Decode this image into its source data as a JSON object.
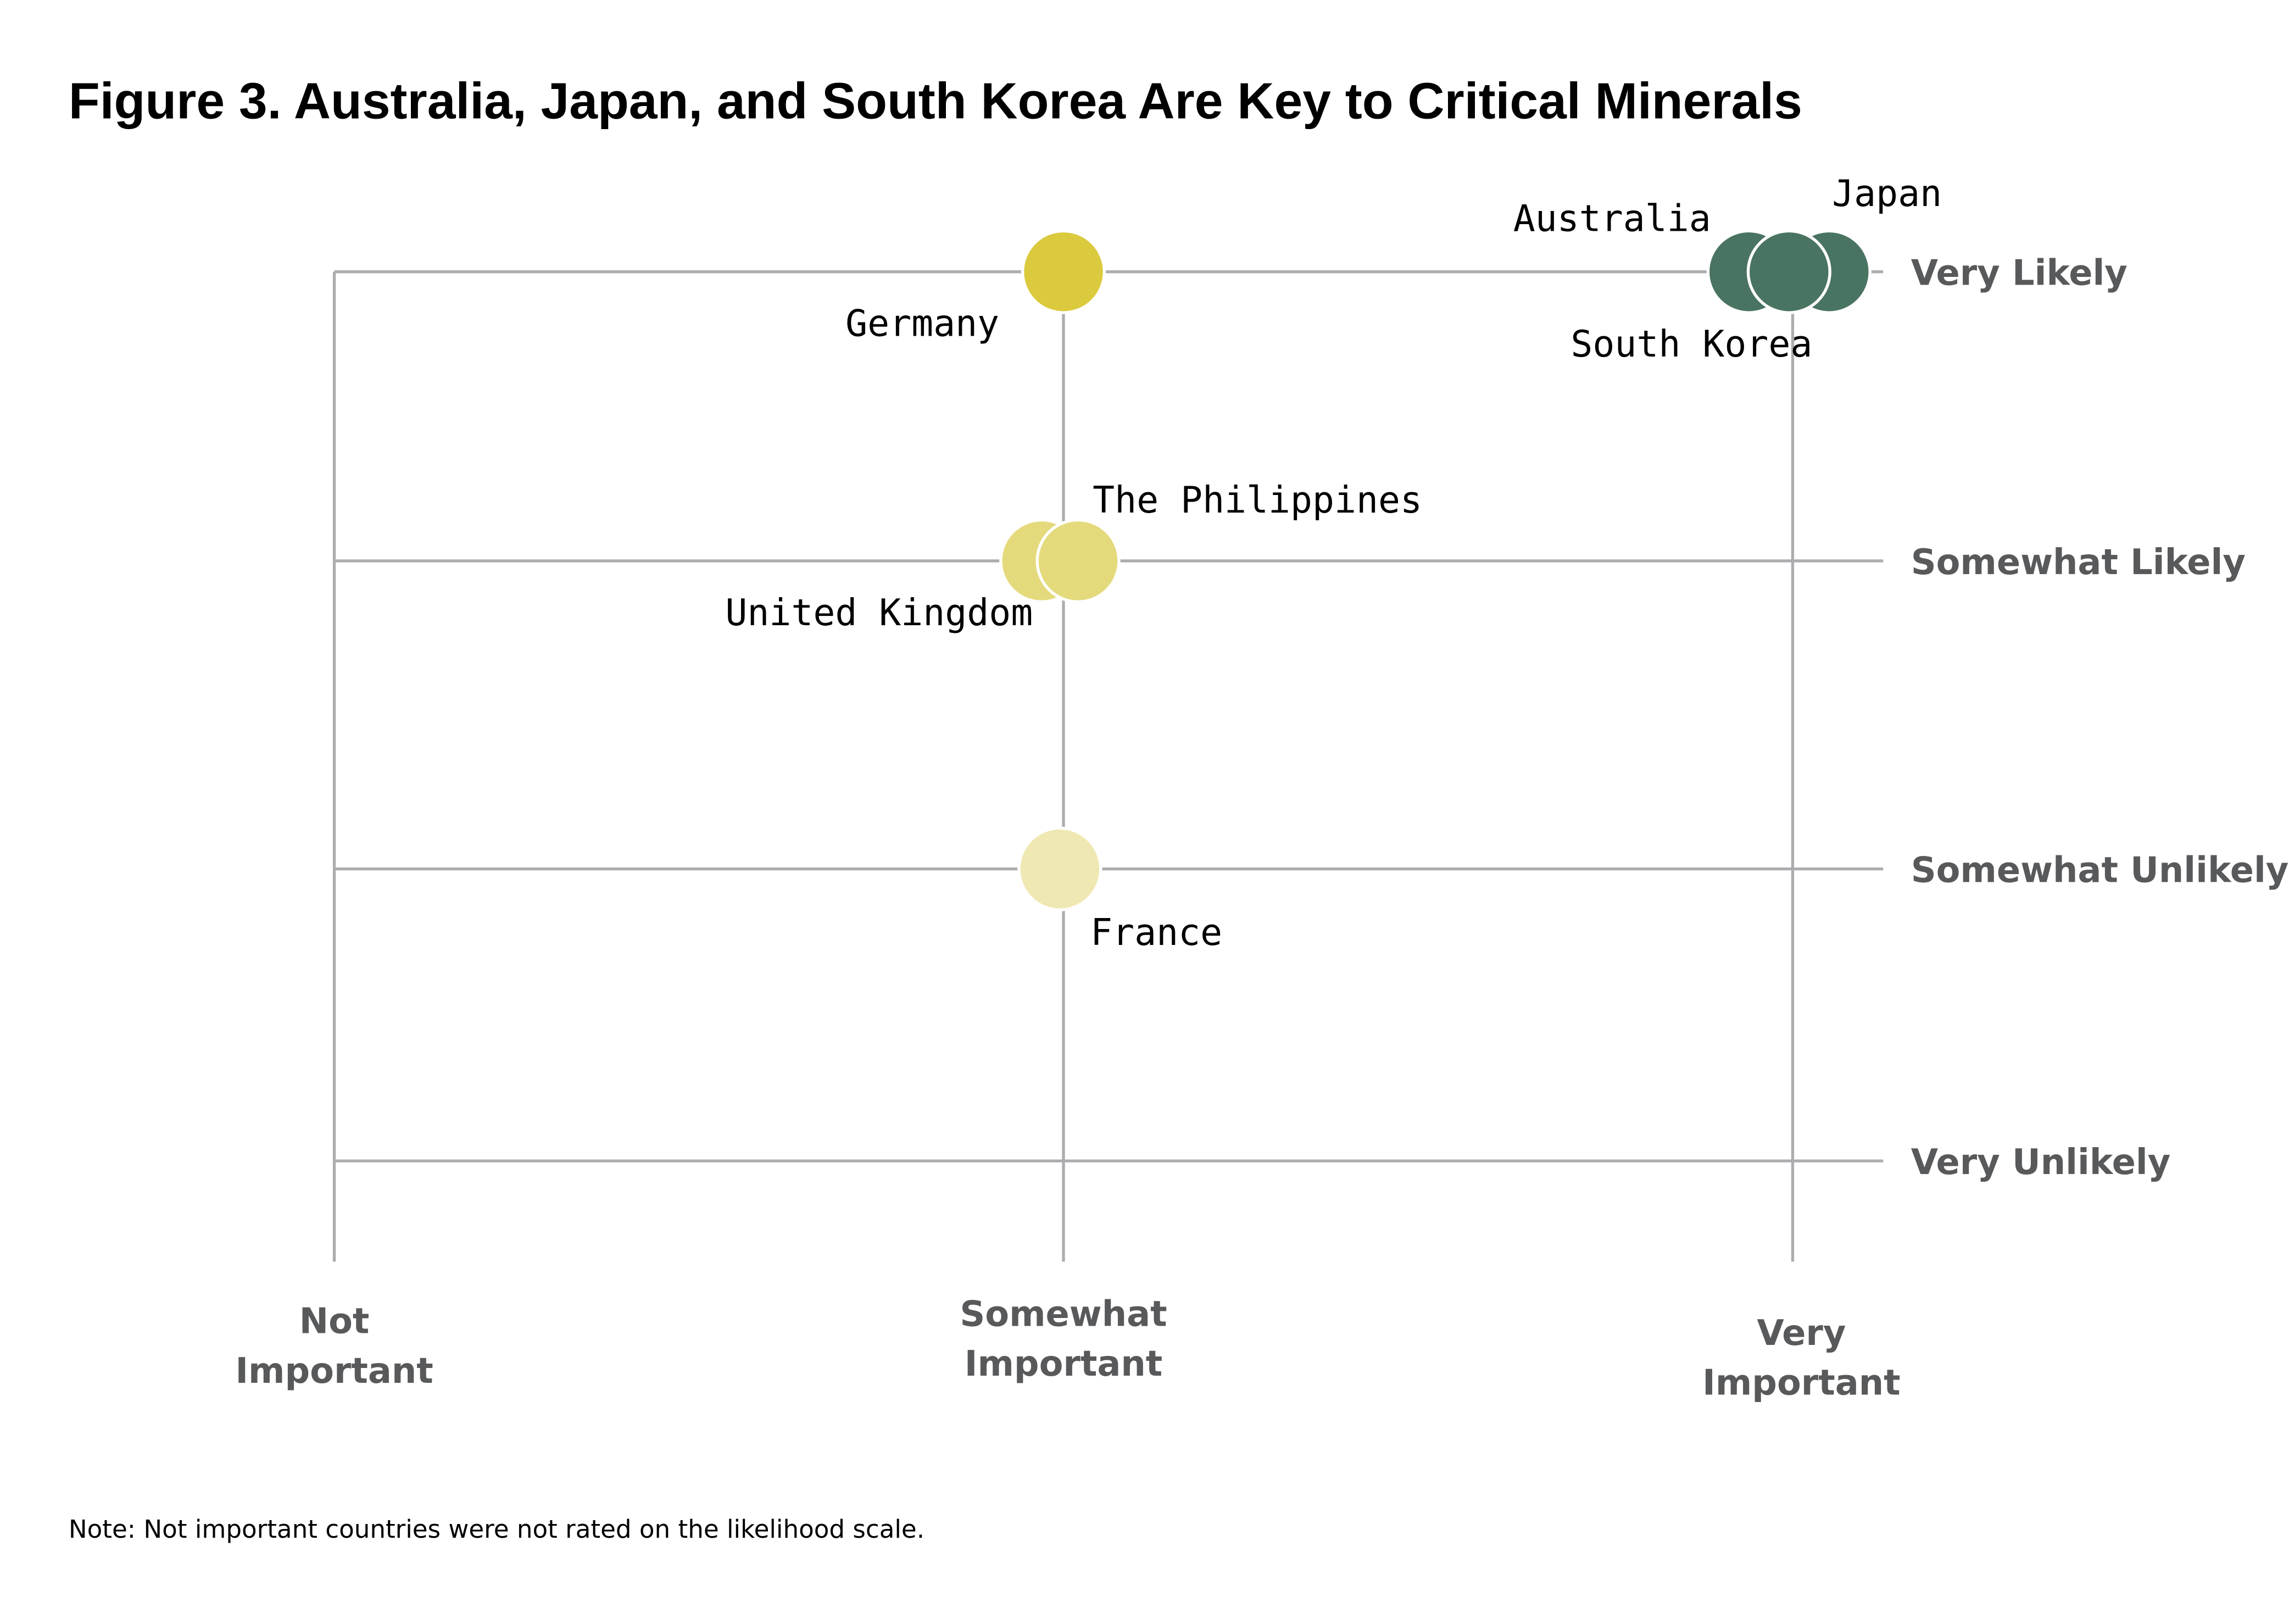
{
  "chart_data": {
    "type": "scatter",
    "title": "Figure 3. Australia, Japan, and South Korea Are Key to Critical Minerals",
    "xlabel": "",
    "ylabel": "",
    "x_categories": [
      {
        "value": 0,
        "lines": [
          "Not",
          "Important"
        ]
      },
      {
        "value": 1,
        "lines": [
          "Somewhat",
          "Important"
        ]
      },
      {
        "value": 2,
        "lines": [
          "Very",
          "Important"
        ]
      }
    ],
    "y_categories": [
      {
        "value": 3,
        "label": "Very Likely"
      },
      {
        "value": 2,
        "label": "Somewhat Likely"
      },
      {
        "value": 1,
        "label": "Somewhat Unlikely"
      },
      {
        "value": 0,
        "label": "Very Unlikely"
      }
    ],
    "xlim": [
      0,
      2
    ],
    "ylim": [
      0,
      3
    ],
    "grid": true,
    "points": [
      {
        "name": "Germany",
        "x": 1.0,
        "y": 3.0,
        "color": "#dcca3e",
        "label_pos": "below-left"
      },
      {
        "name": "Australia",
        "x": 1.94,
        "y": 3.0,
        "color": "#4a7462",
        "label_pos": "above-left"
      },
      {
        "name": "South Korea",
        "x": 1.995,
        "y": 3.0,
        "color": "#4a7462",
        "label_pos": "below-left"
      },
      {
        "name": "Japan",
        "x": 2.05,
        "y": 3.0,
        "color": "#4a7462",
        "label_pos": "above-right"
      },
      {
        "name": "United Kingdom",
        "x": 0.97,
        "y": 2.0,
        "color": "#e4da7c",
        "label_pos": "below-left"
      },
      {
        "name": "The Philippines",
        "x": 1.02,
        "y": 2.0,
        "color": "#e4da7c",
        "label_pos": "above-right"
      },
      {
        "name": "France",
        "x": 0.995,
        "y": 1.0,
        "color": "#f0e8b2",
        "label_pos": "below-right"
      }
    ],
    "note": "Note: Not important countries were not rated on the likelihood scale."
  }
}
